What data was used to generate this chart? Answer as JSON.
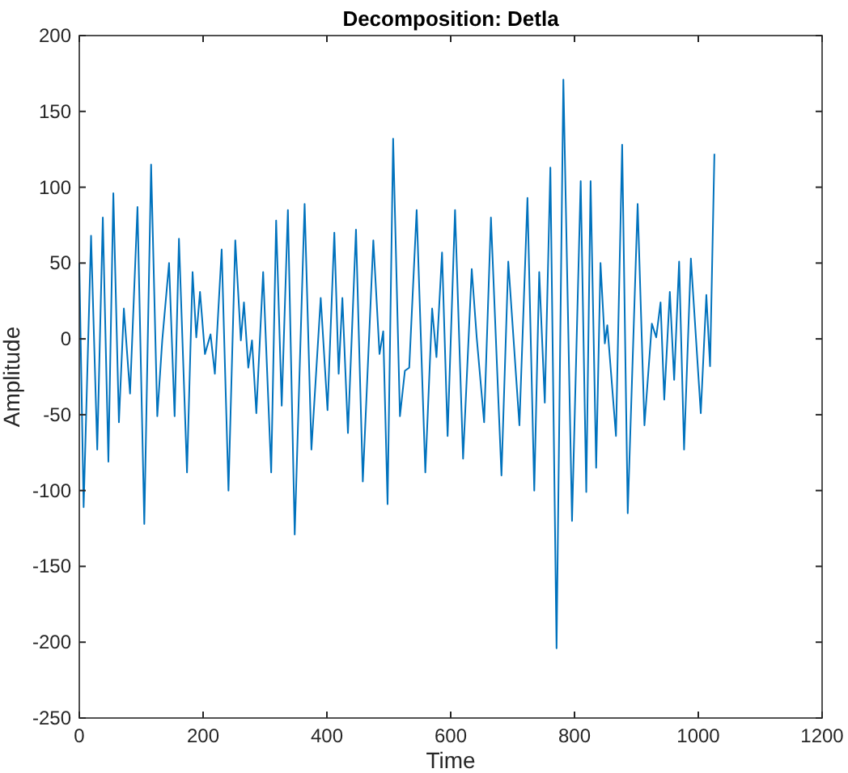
{
  "chart_data": {
    "type": "line",
    "title": "Decomposition: Detla",
    "xlabel": "Time",
    "ylabel": "Amplitude",
    "xlim": [
      0,
      1200
    ],
    "xticks": [
      0,
      200,
      400,
      600,
      800,
      1000,
      1200
    ],
    "ylim": [
      -250,
      200
    ],
    "yticks": [
      -250,
      -200,
      -150,
      -100,
      -50,
      0,
      50,
      100,
      150,
      200
    ],
    "grid": false,
    "series": [
      {
        "color": "#0072bd",
        "x": [
          0,
          7,
          19,
          29,
          38,
          47,
          55,
          64,
          72,
          82,
          94,
          105,
          116,
          126,
          134,
          145,
          154,
          161,
          174,
          183,
          189,
          195,
          203,
          212,
          219,
          230,
          241,
          252,
          261,
          266,
          273,
          279,
          286,
          297,
          310,
          318,
          327,
          337,
          348,
          364,
          375,
          390,
          401,
          412,
          419,
          425,
          434,
          447,
          458,
          475,
          485,
          491,
          498,
          507,
          518,
          526,
          533,
          545,
          559,
          570,
          577,
          586,
          595,
          607,
          620,
          634,
          642,
          654,
          665,
          682,
          693,
          711,
          724,
          735,
          743,
          752,
          761,
          771,
          782,
          796,
          810,
          819,
          826,
          835,
          842,
          849,
          853,
          867,
          877,
          886,
          902,
          913,
          925,
          932,
          939,
          945,
          954,
          961,
          969,
          977,
          988,
          1004,
          1013,
          1019,
          1026
        ],
        "values": [
          50,
          -111,
          68,
          -73,
          80,
          -81,
          96,
          -55,
          20,
          -36,
          87,
          -122,
          115,
          -51,
          -1,
          50,
          -51,
          66,
          -88,
          44,
          1,
          31,
          -10,
          3,
          -23,
          59,
          -100,
          65,
          -1,
          24,
          -19,
          -1,
          -49,
          44,
          -88,
          78,
          -44,
          85,
          -129,
          89,
          -73,
          27,
          -47,
          70,
          -23,
          27,
          -62,
          72,
          -94,
          65,
          -10,
          5,
          -109,
          132,
          -51,
          -21,
          -19,
          85,
          -88,
          20,
          -12,
          57,
          -64,
          85,
          -79,
          46,
          1,
          -55,
          80,
          -90,
          51,
          -57,
          93,
          -100,
          44,
          -42,
          113,
          -204,
          171,
          -120,
          104,
          -101,
          104,
          -85,
          50,
          -3,
          9,
          -64,
          128,
          -115,
          89,
          -57,
          10,
          1,
          24,
          -40,
          31,
          -27,
          51,
          -73,
          53,
          -49,
          29,
          -18,
          122
        ]
      }
    ]
  }
}
